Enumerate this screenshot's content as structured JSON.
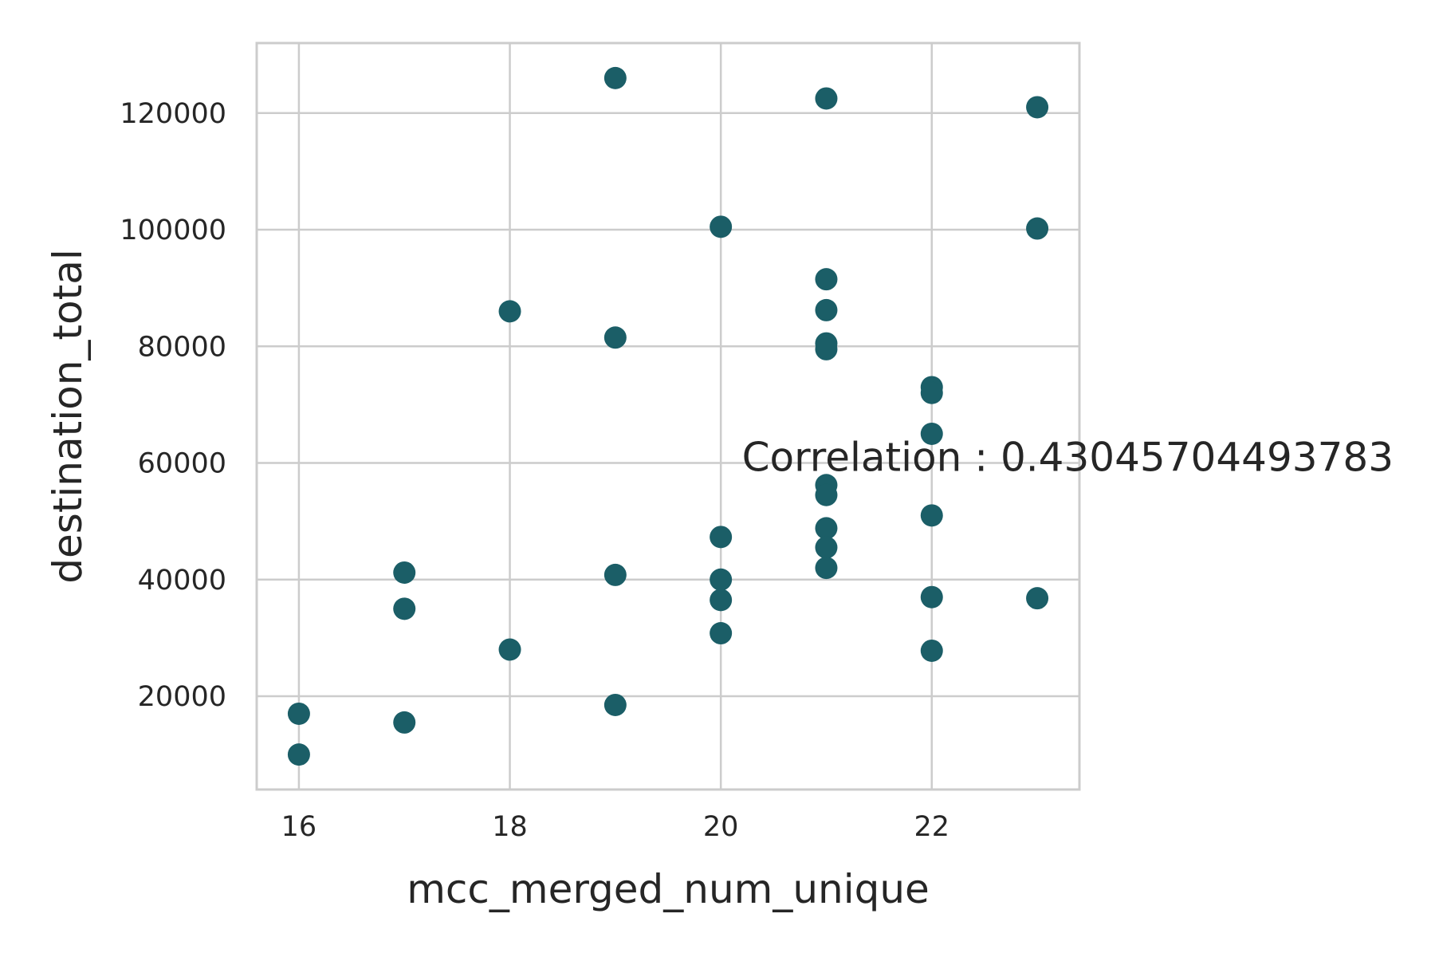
{
  "chart_data": {
    "type": "scatter",
    "title": "",
    "xlabel": "mcc_merged_num_unique",
    "ylabel": "destination_total",
    "xlim": [
      15.6,
      23.4
    ],
    "ylim": [
      4000,
      132000
    ],
    "xticks": [
      16,
      18,
      20,
      22
    ],
    "yticks": [
      20000,
      40000,
      60000,
      80000,
      100000,
      120000
    ],
    "grid": true,
    "legend": "none",
    "point_color": "#1b5e67",
    "annotation": {
      "text": "Correlation : 0.43045704493783",
      "x": 20.2,
      "y": 60000
    },
    "points": [
      {
        "x": 16,
        "y": 17000
      },
      {
        "x": 16,
        "y": 10000
      },
      {
        "x": 17,
        "y": 41200
      },
      {
        "x": 17,
        "y": 35000
      },
      {
        "x": 17,
        "y": 15500
      },
      {
        "x": 18,
        "y": 86000
      },
      {
        "x": 18,
        "y": 28000
      },
      {
        "x": 19,
        "y": 126000
      },
      {
        "x": 19,
        "y": 81500
      },
      {
        "x": 19,
        "y": 40800
      },
      {
        "x": 19,
        "y": 18500
      },
      {
        "x": 20,
        "y": 100500
      },
      {
        "x": 20,
        "y": 47300
      },
      {
        "x": 20,
        "y": 40000
      },
      {
        "x": 20,
        "y": 36500
      },
      {
        "x": 20,
        "y": 30800
      },
      {
        "x": 21,
        "y": 122500
      },
      {
        "x": 21,
        "y": 91500
      },
      {
        "x": 21,
        "y": 86200
      },
      {
        "x": 21,
        "y": 80500
      },
      {
        "x": 21,
        "y": 79500
      },
      {
        "x": 21,
        "y": 56200
      },
      {
        "x": 21,
        "y": 54500
      },
      {
        "x": 21,
        "y": 48800
      },
      {
        "x": 21,
        "y": 45500
      },
      {
        "x": 21,
        "y": 42000
      },
      {
        "x": 22,
        "y": 73000
      },
      {
        "x": 22,
        "y": 72000
      },
      {
        "x": 22,
        "y": 65000
      },
      {
        "x": 22,
        "y": 51000
      },
      {
        "x": 22,
        "y": 37000
      },
      {
        "x": 22,
        "y": 27800
      },
      {
        "x": 23,
        "y": 121000
      },
      {
        "x": 23,
        "y": 100200
      },
      {
        "x": 23,
        "y": 36800
      }
    ]
  }
}
